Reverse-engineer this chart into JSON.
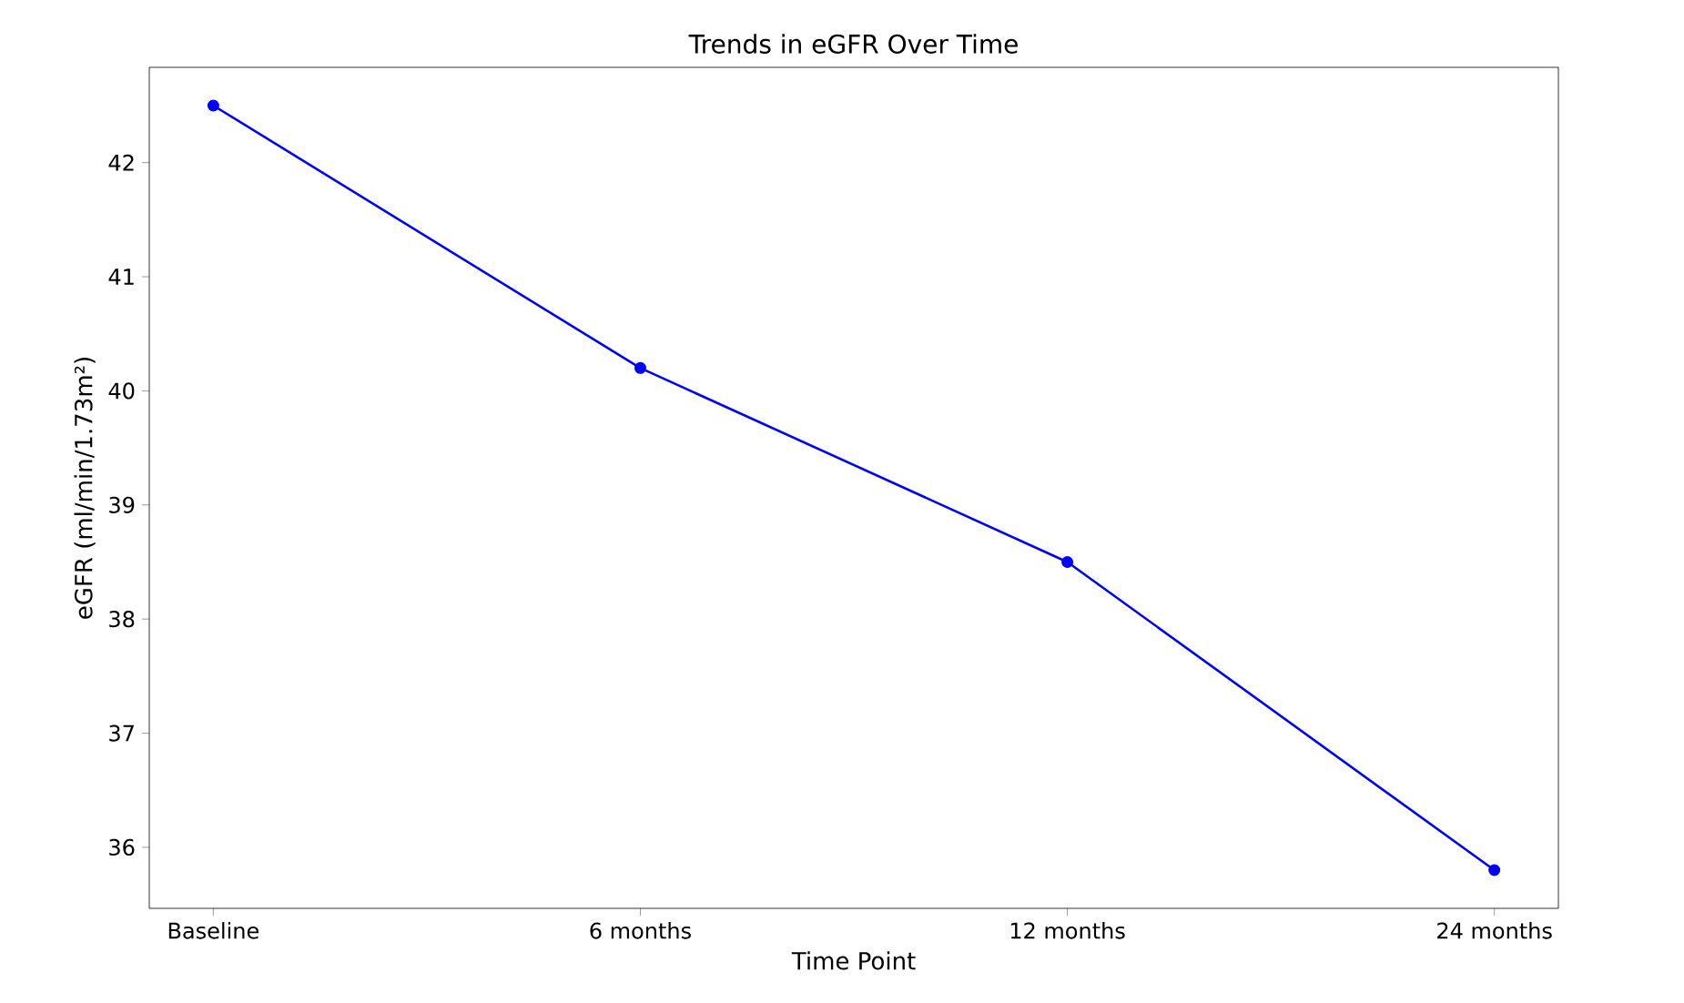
{
  "chart_data": {
    "type": "line",
    "title": "Trends in eGFR Over Time",
    "xlabel": "Time Point",
    "ylabel": "eGFR (ml/min/1.73m²)",
    "categories": [
      "Baseline",
      "6 months",
      "12 months",
      "24 months"
    ],
    "series": [
      {
        "color": "#0000ff",
        "values": [
          42.5,
          40.2,
          38.5,
          35.8
        ]
      }
    ],
    "ylim": [
      35.465,
      42.835
    ],
    "yticks": [
      36,
      37,
      38,
      39,
      40,
      41,
      42
    ],
    "marker": "circle",
    "line_style": "solid"
  }
}
